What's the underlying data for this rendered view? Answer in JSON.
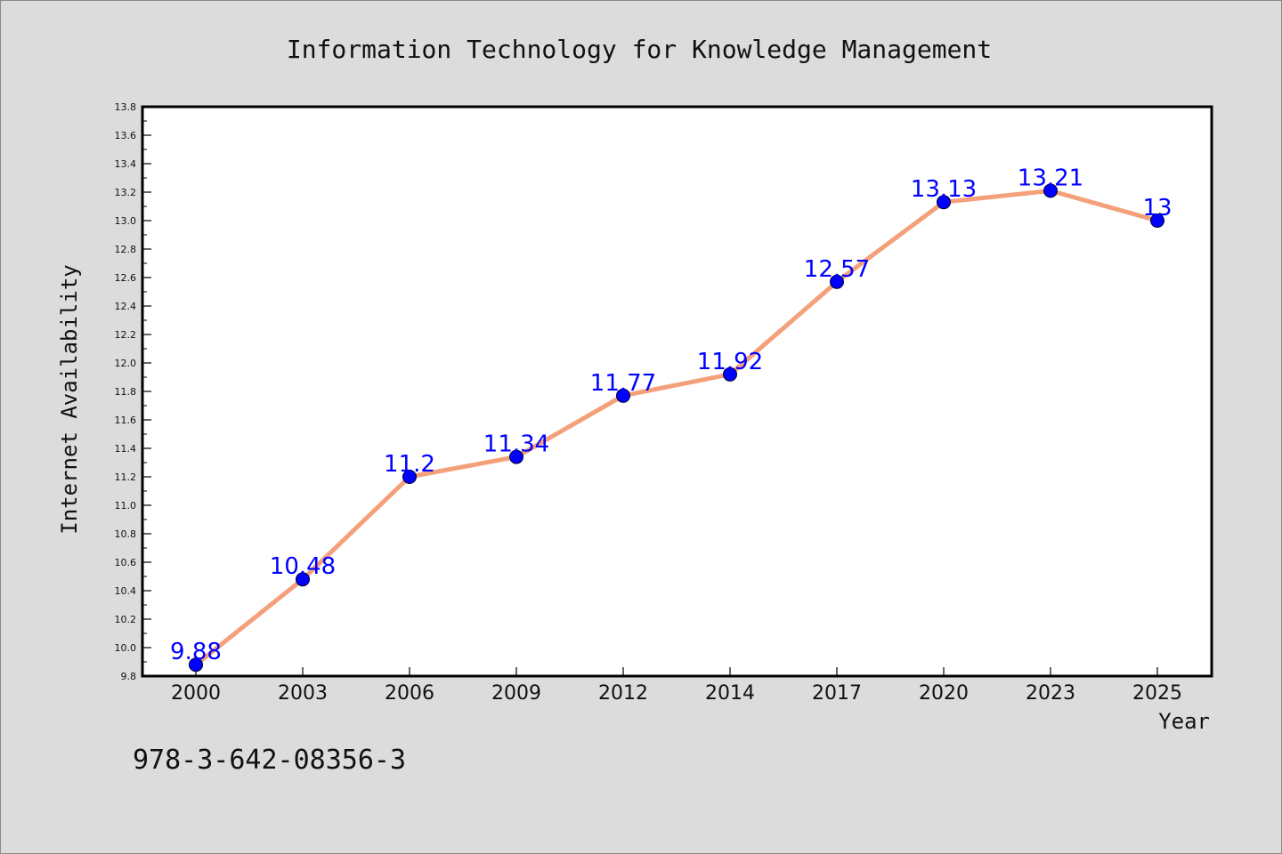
{
  "chart_data": {
    "type": "line",
    "title": "Information Technology for Knowledge Management",
    "xlabel": "Year",
    "ylabel": "Internet Availability",
    "categories": [
      "2000",
      "2003",
      "2006",
      "2009",
      "2012",
      "2014",
      "2017",
      "2020",
      "2023",
      "2025"
    ],
    "series": [
      {
        "values": [
          9.88,
          10.48,
          11.2,
          11.34,
          11.77,
          11.92,
          12.57,
          13.13,
          13.21,
          13.0
        ],
        "labels": [
          "9.88",
          "10.48",
          "11.2",
          "11.34",
          "11.77",
          "11.92",
          "12.57",
          "13.13",
          "13.21",
          "13"
        ],
        "line_color": "#f4a07a",
        "marker_color": "#0000ff"
      }
    ],
    "ylim": [
      9.8,
      13.8
    ],
    "yticks": [
      "9.8",
      "10.0",
      "10.2",
      "10.4",
      "10.6",
      "10.8",
      "11.0",
      "11.2",
      "11.4",
      "11.6",
      "11.8",
      "12.0",
      "12.2",
      "12.4",
      "12.6",
      "12.8",
      "13.0",
      "13.2",
      "13.4",
      "13.6",
      "13.8"
    ],
    "grid": false,
    "legend": "none"
  },
  "footer_text": "978-3-642-08356-3",
  "colors": {
    "background": "#dcdcdc",
    "plot_background": "#ffffff",
    "line": "#f4a07a",
    "marker": "#0000ff",
    "data_label": "#0000ff"
  }
}
